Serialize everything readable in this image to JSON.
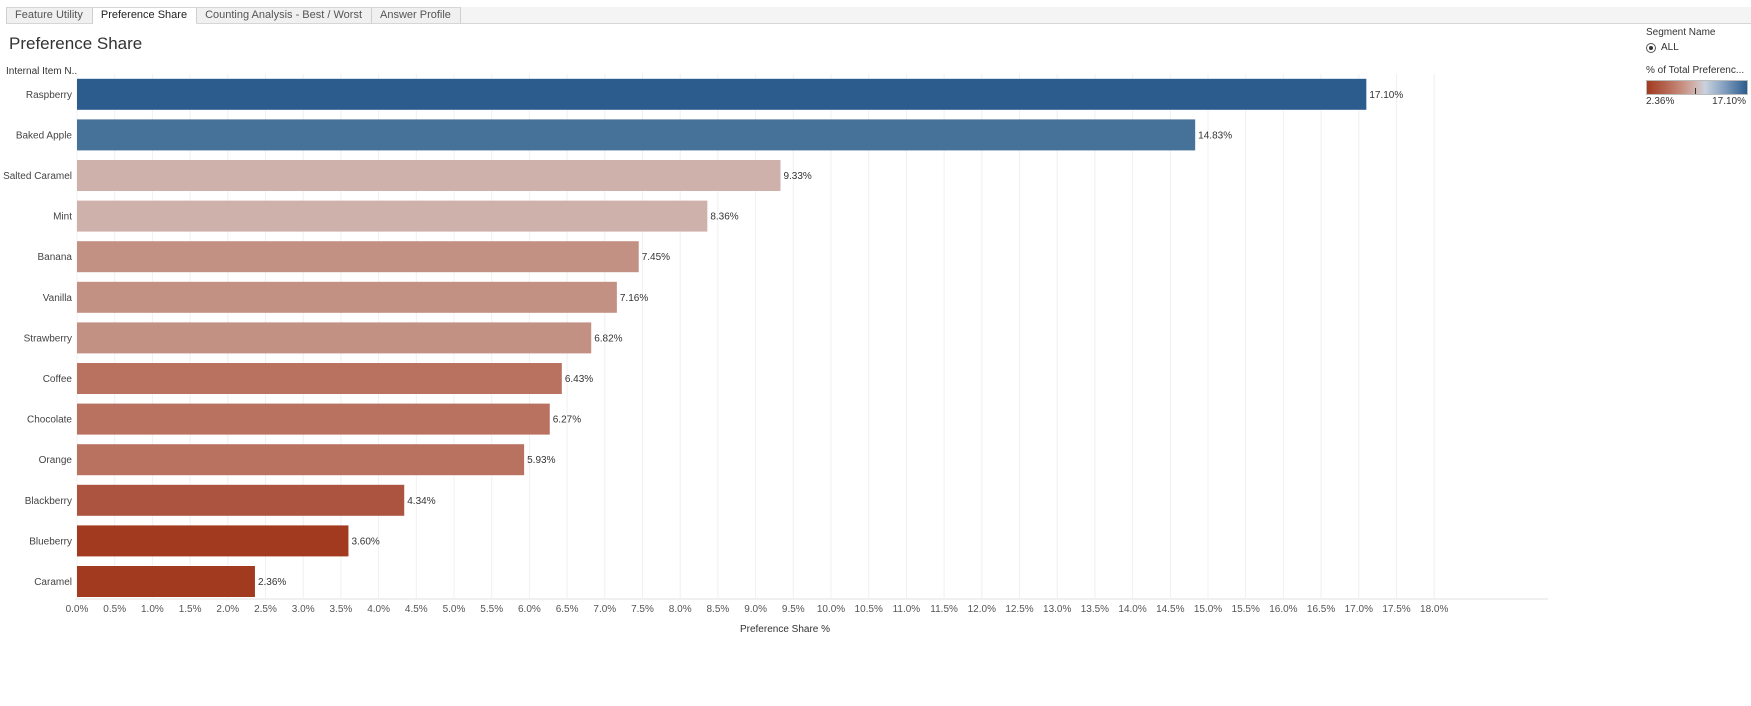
{
  "tabs": [
    {
      "label": "Feature Utility",
      "active": false
    },
    {
      "label": "Preference Share",
      "active": true
    },
    {
      "label": "Counting Analysis - Best / Worst",
      "active": false
    },
    {
      "label": "Answer Profile",
      "active": false
    }
  ],
  "page_title": "Preference Share",
  "legend": {
    "segment_title": "Segment Name",
    "segment_option": "ALL",
    "color_title": "% of Total Preferenc...",
    "color_min": "2.36%",
    "color_max": "17.10%"
  },
  "colors": {
    "high": "#2c5c8e",
    "mid_high": "#46729a",
    "light": "#cfb1ab",
    "mid": "#c39184",
    "mid_low": "#b8725f",
    "low_mid": "#ac5440",
    "low": "#a23a1f"
  },
  "chart_data": {
    "type": "bar",
    "orientation": "horizontal",
    "title": "Preference Share",
    "row_header": "Internal Item N..",
    "xlabel": "Preference Share %",
    "xlim": [
      0,
      18.4
    ],
    "grid": "vertical",
    "categories": [
      "Raspberry",
      "Baked Apple",
      "Salted Caramel",
      "Mint",
      "Banana",
      "Vanilla",
      "Strawberry",
      "Coffee",
      "Chocolate",
      "Orange",
      "Blackberry",
      "Blueberry",
      "Caramel"
    ],
    "values": [
      17.1,
      14.83,
      9.33,
      8.36,
      7.45,
      7.16,
      6.82,
      6.43,
      6.27,
      5.93,
      4.34,
      3.6,
      2.36
    ],
    "labels": [
      "17.10%",
      "14.83%",
      "9.33%",
      "8.36%",
      "7.45%",
      "7.16%",
      "6.82%",
      "6.43%",
      "6.27%",
      "5.93%",
      "4.34%",
      "3.60%",
      "2.36%"
    ],
    "bar_colors": [
      "#2c5c8e",
      "#46729a",
      "#cfb1ab",
      "#cfb1ab",
      "#c39184",
      "#c39184",
      "#c39184",
      "#b8725f",
      "#b8725f",
      "#b8725f",
      "#ac5440",
      "#a23a1f",
      "#a23a1f"
    ],
    "ticks": [
      "0.0%",
      "0.5%",
      "1.0%",
      "1.5%",
      "2.0%",
      "2.5%",
      "3.0%",
      "3.5%",
      "4.0%",
      "4.5%",
      "5.0%",
      "5.5%",
      "6.0%",
      "6.5%",
      "7.0%",
      "7.5%",
      "8.0%",
      "8.5%",
      "9.0%",
      "9.5%",
      "10.0%",
      "10.5%",
      "11.0%",
      "11.5%",
      "12.0%",
      "12.5%",
      "13.0%",
      "13.5%",
      "14.0%",
      "14.5%",
      "15.0%",
      "15.5%",
      "16.0%",
      "16.5%",
      "17.0%",
      "17.5%",
      "18.0%"
    ],
    "legend": "top-right"
  }
}
